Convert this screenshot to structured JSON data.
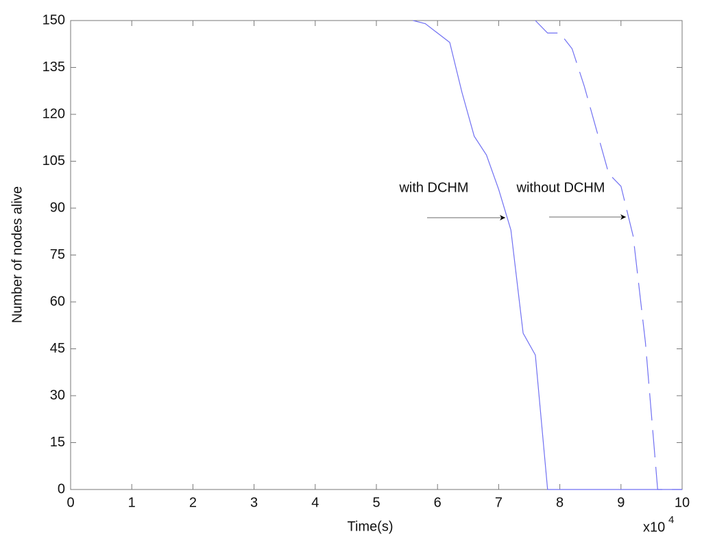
{
  "chart_data": {
    "type": "line",
    "xlabel": "Time(s)",
    "ylabel": "Number of nodes alive",
    "x_multiplier": {
      "base": "x10",
      "exponent": "4"
    },
    "xlim": [
      0,
      10
    ],
    "xticks": [
      0,
      1,
      2,
      3,
      4,
      5,
      6,
      7,
      8,
      9,
      10
    ],
    "ylim": [
      0,
      150
    ],
    "yticks": [
      0,
      15,
      30,
      45,
      60,
      75,
      90,
      105,
      120,
      135,
      150
    ],
    "grid": false,
    "series": [
      {
        "name": "with DCHM",
        "color": "#6f6ff2",
        "line_style": "solid",
        "x": [
          5.6,
          5.8,
          6.0,
          6.2,
          6.4,
          6.6,
          6.8,
          7.0,
          7.2,
          7.4,
          7.6,
          7.8,
          10
        ],
        "values": [
          150,
          149,
          146,
          143,
          127,
          113,
          107,
          96,
          83,
          50,
          43,
          0,
          0
        ]
      },
      {
        "name": "without DCHM",
        "color": "#6f6ff2",
        "line_style": "dashed",
        "x": [
          7.6,
          7.8,
          8.0,
          8.2,
          8.4,
          8.6,
          8.8,
          9.0,
          9.2,
          9.4,
          9.6,
          10
        ],
        "values": [
          150,
          146,
          146,
          141,
          129,
          115,
          101,
          97,
          81,
          47,
          0,
          0
        ]
      }
    ]
  }
}
